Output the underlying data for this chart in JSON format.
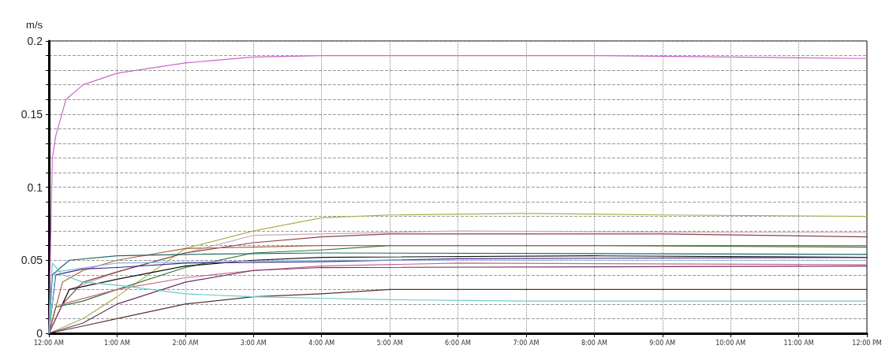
{
  "chart_data": {
    "type": "line",
    "ylabel": "m/s",
    "grid": true,
    "marker": "none",
    "line_style": "solid",
    "xlim": [
      0,
      12
    ],
    "ylim": [
      0,
      0.2
    ],
    "xticks": [
      {
        "value": 0,
        "label": "12:00 AM"
      },
      {
        "value": 1,
        "label": "1:00 AM"
      },
      {
        "value": 2,
        "label": "2:00 AM"
      },
      {
        "value": 3,
        "label": "3:00 AM"
      },
      {
        "value": 4,
        "label": "4:00 AM"
      },
      {
        "value": 5,
        "label": "5:00 AM"
      },
      {
        "value": 6,
        "label": "6:00 AM"
      },
      {
        "value": 7,
        "label": "7:00 AM"
      },
      {
        "value": 8,
        "label": "8:00 AM"
      },
      {
        "value": 9,
        "label": "9:00 AM"
      },
      {
        "value": 10,
        "label": "10:00 AM"
      },
      {
        "value": 11,
        "label": "11:00 AM"
      },
      {
        "value": 12,
        "label": "12:00 PM"
      }
    ],
    "yticks": [
      0,
      {
        "value": 0.01,
        "label": null
      },
      {
        "value": 0.02,
        "label": null
      },
      {
        "value": 0.03,
        "label": null
      },
      {
        "value": 0.04,
        "label": null
      },
      0.05,
      {
        "value": 0.06,
        "label": null
      },
      {
        "value": 0.07,
        "label": null
      },
      {
        "value": 0.08,
        "label": null
      },
      {
        "value": 0.09,
        "label": null
      },
      0.1,
      {
        "value": 0.11,
        "label": null
      },
      {
        "value": 0.12,
        "label": null
      },
      {
        "value": 0.13,
        "label": null
      },
      {
        "value": 0.14,
        "label": null
      },
      0.15,
      {
        "value": 0.16,
        "label": null
      },
      {
        "value": 0.17,
        "label": null
      },
      {
        "value": 0.18,
        "label": null
      },
      {
        "value": 0.19,
        "label": null
      },
      0.2
    ],
    "series": [
      {
        "color": "#cc66cc",
        "x": [
          0,
          0.05,
          0.1,
          0.25,
          0.5,
          1,
          2,
          3,
          4,
          6,
          8,
          10,
          12
        ],
        "values": [
          0,
          0.12,
          0.135,
          0.16,
          0.17,
          0.178,
          0.185,
          0.189,
          0.19,
          0.19,
          0.19,
          0.189,
          0.188
        ]
      },
      {
        "color": "#a8b050",
        "x": [
          0,
          0.5,
          1,
          2,
          3,
          4,
          5,
          7,
          9,
          12
        ],
        "values": [
          0,
          0.01,
          0.025,
          0.058,
          0.07,
          0.079,
          0.081,
          0.082,
          0.081,
          0.08
        ]
      },
      {
        "color": "#c8a8b8",
        "x": [
          0,
          0.3,
          1,
          2,
          3,
          4,
          6,
          10,
          12
        ],
        "values": [
          0,
          0.03,
          0.042,
          0.055,
          0.067,
          0.068,
          0.07,
          0.069,
          0.069
        ]
      },
      {
        "color": "#884444",
        "x": [
          0,
          0.2,
          0.5,
          1,
          2,
          3,
          4,
          5,
          9,
          12
        ],
        "values": [
          0,
          0.02,
          0.035,
          0.042,
          0.055,
          0.062,
          0.066,
          0.068,
          0.068,
          0.066
        ]
      },
      {
        "color": "#337733",
        "x": [
          0,
          0.1,
          0.5,
          1,
          2,
          3,
          4,
          5,
          8,
          12
        ],
        "values": [
          0,
          0.018,
          0.022,
          0.03,
          0.045,
          0.055,
          0.057,
          0.06,
          0.06,
          0.059
        ]
      },
      {
        "color": "#aa6644",
        "x": [
          0,
          0.2,
          0.5,
          1,
          2,
          3,
          4,
          12
        ],
        "values": [
          0,
          0.035,
          0.043,
          0.05,
          0.058,
          0.059,
          0.06,
          0.06
        ]
      },
      {
        "color": "#226666",
        "x": [
          0,
          0.05,
          0.3,
          1,
          2,
          4,
          12
        ],
        "values": [
          0,
          0.04,
          0.05,
          0.053,
          0.054,
          0.055,
          0.054
        ]
      },
      {
        "color": "#111111",
        "x": [
          0,
          0.3,
          1,
          2,
          3,
          4,
          8,
          12
        ],
        "values": [
          0,
          0.03,
          0.037,
          0.046,
          0.05,
          0.052,
          0.053,
          0.052
        ]
      },
      {
        "color": "#442288",
        "x": [
          0,
          0.1,
          0.5,
          1,
          2,
          4,
          6,
          12
        ],
        "values": [
          0,
          0.04,
          0.044,
          0.045,
          0.048,
          0.049,
          0.051,
          0.052
        ]
      },
      {
        "color": "#88bbdd",
        "x": [
          0,
          0.1,
          1,
          4,
          12
        ],
        "values": [
          0,
          0.042,
          0.048,
          0.05,
          0.05
        ]
      },
      {
        "color": "#cc6688",
        "x": [
          0,
          0.2,
          1,
          2,
          3,
          4,
          6,
          12
        ],
        "values": [
          0,
          0.02,
          0.03,
          0.038,
          0.043,
          0.046,
          0.048,
          0.047
        ]
      },
      {
        "color": "#663366",
        "x": [
          0,
          0.5,
          1,
          2,
          3,
          4,
          12
        ],
        "values": [
          0,
          0.007,
          0.02,
          0.035,
          0.043,
          0.045,
          0.046
        ]
      },
      {
        "color": "#553333",
        "x": [
          0,
          0.5,
          1,
          2,
          3,
          4,
          5,
          12
        ],
        "values": [
          0,
          0.005,
          0.01,
          0.02,
          0.025,
          0.027,
          0.03,
          0.03
        ]
      },
      {
        "color": "#66cccc",
        "x": [
          0,
          0.05,
          0.2,
          0.5,
          1,
          2,
          3,
          4,
          5,
          7,
          12
        ],
        "values": [
          0,
          0.048,
          0.04,
          0.035,
          0.033,
          0.027,
          0.025,
          0.024,
          0.023,
          0.022,
          0.022
        ]
      }
    ]
  }
}
